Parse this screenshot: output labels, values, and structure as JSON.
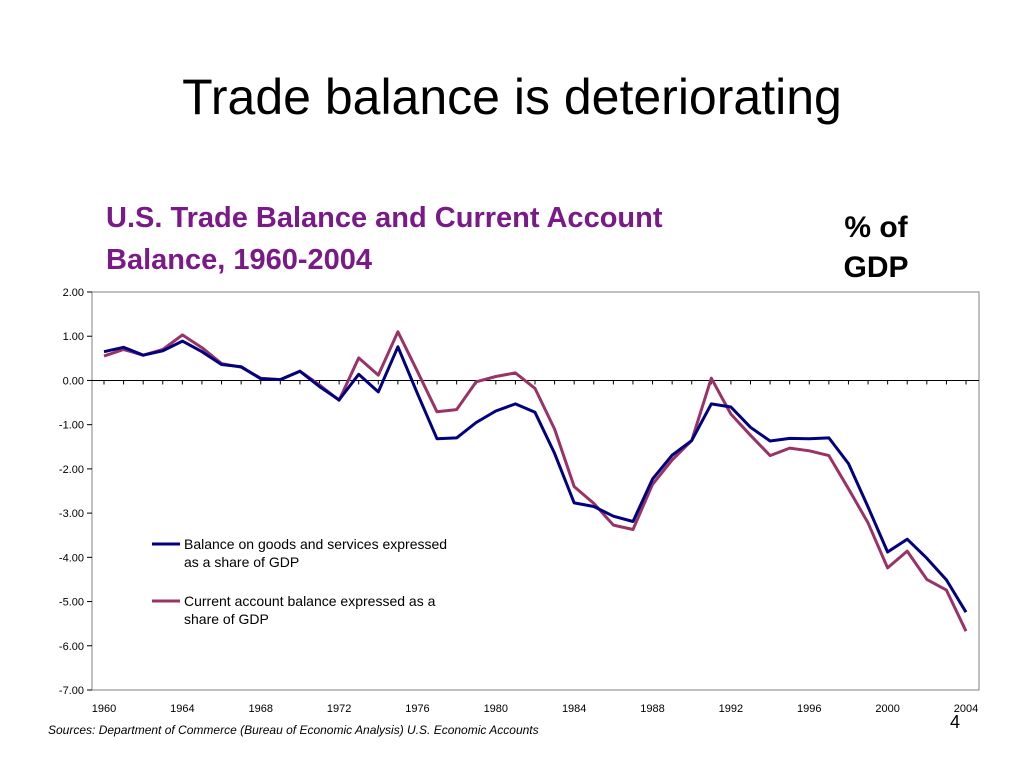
{
  "slide": {
    "title": "Trade balance is deteriorating",
    "unit_note_line1": "% of",
    "unit_note_line2": "GDP",
    "sources": "Sources: Department of Commerce (Bureau of Economic Analysis) U.S. Economic Accounts",
    "page_number": "4"
  },
  "chart_data": {
    "type": "line",
    "title_line1": "U.S. Trade Balance and Current Account",
    "title_line2": "Balance, 1960-2004",
    "xlabel": "",
    "ylabel": "",
    "ylim": [
      -7,
      2
    ],
    "xlim": [
      1960,
      2004
    ],
    "yticks": [
      "2.00",
      "1.00",
      "0.00",
      "-1.00",
      "-2.00",
      "-3.00",
      "-4.00",
      "-5.00",
      "-6.00",
      "-7.00"
    ],
    "xtick_labels": [
      "1960",
      "1964",
      "1968",
      "1972",
      "1976",
      "1980",
      "1984",
      "1988",
      "1992",
      "1996",
      "2000",
      "2004"
    ],
    "grid": false,
    "legend_position": "lower-left",
    "x": [
      1960,
      1961,
      1962,
      1963,
      1964,
      1965,
      1966,
      1967,
      1968,
      1969,
      1970,
      1971,
      1972,
      1973,
      1974,
      1975,
      1976,
      1977,
      1978,
      1979,
      1980,
      1981,
      1982,
      1983,
      1984,
      1985,
      1986,
      1987,
      1988,
      1989,
      1990,
      1991,
      1992,
      1993,
      1994,
      1995,
      1996,
      1997,
      1998,
      1999,
      2000,
      2001,
      2002,
      2003,
      2004
    ],
    "series": [
      {
        "name": "Balance on goods and services expressed as a share of GDP",
        "legend_line1": "Balance on goods and services expressed",
        "legend_line2": "as a share of GDP",
        "color": "#000080",
        "values": [
          0.65,
          0.75,
          0.57,
          0.67,
          0.89,
          0.65,
          0.36,
          0.31,
          0.04,
          0.02,
          0.21,
          -0.14,
          -0.44,
          0.14,
          -0.26,
          0.76,
          -0.3,
          -1.32,
          -1.3,
          -0.95,
          -0.69,
          -0.53,
          -0.72,
          -1.65,
          -2.77,
          -2.85,
          -3.07,
          -3.19,
          -2.23,
          -1.69,
          -1.36,
          -0.53,
          -0.6,
          -1.06,
          -1.37,
          -1.31,
          -1.32,
          -1.3,
          -1.88,
          -2.86,
          -3.88,
          -3.59,
          -4.02,
          -4.51,
          -5.24
        ]
      },
      {
        "name": "Current account balance expressed as a share of GDP",
        "legend_line1": "Current account balance expressed as a",
        "legend_line2": "share of GDP",
        "color": "#993366",
        "values": [
          0.55,
          0.7,
          0.57,
          0.7,
          1.03,
          0.74,
          0.38,
          0.3,
          0.05,
          0.02,
          0.21,
          -0.1,
          -0.45,
          0.51,
          0.12,
          1.1,
          0.2,
          -0.71,
          -0.66,
          -0.03,
          0.09,
          0.17,
          -0.18,
          -1.1,
          -2.4,
          -2.78,
          -3.27,
          -3.37,
          -2.35,
          -1.8,
          -1.36,
          0.05,
          -0.76,
          -1.24,
          -1.7,
          -1.53,
          -1.59,
          -1.7,
          -2.45,
          -3.22,
          -4.24,
          -3.86,
          -4.5,
          -4.74,
          -5.67
        ]
      }
    ]
  }
}
